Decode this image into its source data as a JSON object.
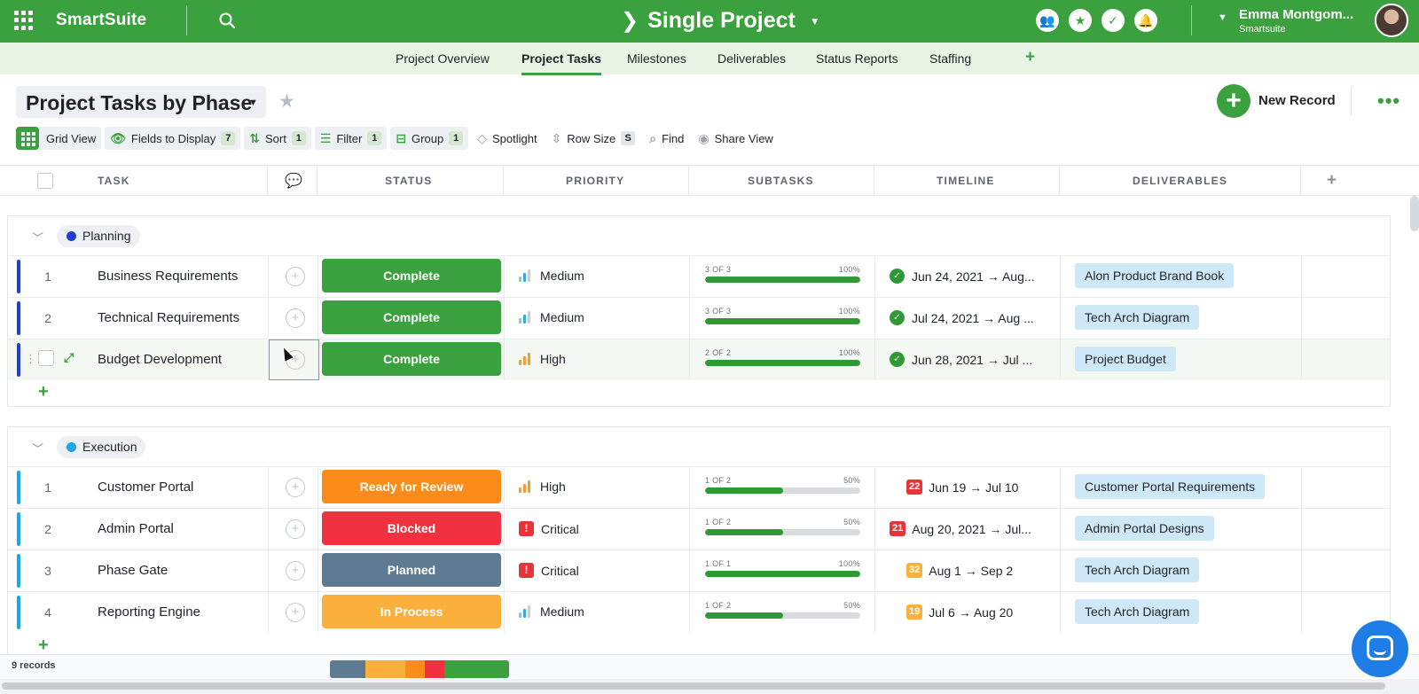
{
  "app": {
    "brand": "SmartSuite",
    "project_title": "Single Project",
    "user_name": "Emma Montgom...",
    "user_org": "Smartsuite"
  },
  "tabs": [
    {
      "label": "Project Overview"
    },
    {
      "label": "Project Tasks",
      "active": true
    },
    {
      "label": "Milestones"
    },
    {
      "label": "Deliverables"
    },
    {
      "label": "Status Reports"
    },
    {
      "label": "Staffing"
    }
  ],
  "view": {
    "title": "Project Tasks by Phase",
    "new_record_label": "New Record"
  },
  "toolbar": {
    "grid_view": "Grid View",
    "fields": "Fields to Display",
    "fields_count": "7",
    "sort": "Sort",
    "sort_count": "1",
    "filter": "Filter",
    "filter_count": "1",
    "group": "Group",
    "group_count": "1",
    "spotlight": "Spotlight",
    "row_size": "Row Size",
    "row_size_value": "S",
    "find": "Find",
    "share_view": "Share View"
  },
  "columns": {
    "task": "TASK",
    "status": "STATUS",
    "priority": "PRIORITY",
    "subtasks": "SUBTASKS",
    "timeline": "TIMELINE",
    "deliverables": "DELIVERABLES"
  },
  "colors": {
    "brand_green": "#3aa13e",
    "complete": "#3aa13e",
    "ready_for_review": "#fb8c1b",
    "blocked": "#f0313f",
    "planned": "#5f7a93",
    "in_process": "#fbb03b",
    "planning_dot": "#1f3fcf",
    "execution_dot": "#1aa7e8"
  },
  "groups": [
    {
      "name": "Planning",
      "rows": [
        {
          "num": "1",
          "task": "Business Requirements",
          "status": "Complete",
          "priority": "Medium",
          "sub_count": "3 OF 3",
          "sub_pct": "100%",
          "sub_fill": 1.0,
          "tl_badge": "",
          "timeline": "Jun 24, 2021 → Aug...",
          "deliverable": "Alon Product Brand Book"
        },
        {
          "num": "2",
          "task": "Technical Requirements",
          "status": "Complete",
          "priority": "Medium",
          "sub_count": "3 OF 3",
          "sub_pct": "100%",
          "sub_fill": 1.0,
          "tl_badge": "",
          "timeline": "Jul 24, 2021 → Aug ...",
          "deliverable": "Tech Arch Diagram"
        },
        {
          "num": "3",
          "task": "Budget Development",
          "status": "Complete",
          "priority": "High",
          "sub_count": "2 OF 2",
          "sub_pct": "100%",
          "sub_fill": 1.0,
          "tl_badge": "",
          "timeline": "Jun 28, 2021 → Jul ...",
          "deliverable": "Project Budget"
        }
      ]
    },
    {
      "name": "Execution",
      "rows": [
        {
          "num": "1",
          "task": "Customer Portal",
          "status": "Ready for Review",
          "priority": "High",
          "sub_count": "1 OF 2",
          "sub_pct": "50%",
          "sub_fill": 0.5,
          "tl_badge": "22",
          "timeline": "Jun 19 → Jul 10",
          "deliverable": "Customer Portal Requirements"
        },
        {
          "num": "2",
          "task": "Admin Portal",
          "status": "Blocked",
          "priority": "Critical",
          "sub_count": "1 OF 2",
          "sub_pct": "50%",
          "sub_fill": 0.5,
          "tl_badge": "21",
          "timeline": "Aug 20, 2021 → Jul...",
          "deliverable": "Admin Portal Designs"
        },
        {
          "num": "3",
          "task": "Phase Gate",
          "status": "Planned",
          "priority": "Critical",
          "sub_count": "1 OF 1",
          "sub_pct": "100%",
          "sub_fill": 1.0,
          "tl_badge": "32",
          "timeline": "Aug 1 → Sep 2",
          "deliverable": "Tech Arch Diagram"
        },
        {
          "num": "4",
          "task": "Reporting Engine",
          "status": "In Process",
          "priority": "Medium",
          "sub_count": "1 OF 2",
          "sub_pct": "50%",
          "sub_fill": 0.5,
          "tl_badge": "19",
          "timeline": "Jul 6 → Aug 20",
          "deliverable": "Tech Arch Diagram"
        }
      ]
    }
  ],
  "footer": {
    "records": "9 records",
    "status_summary": [
      {
        "status": "Planned",
        "fraction": 0.2
      },
      {
        "status": "In Process",
        "fraction": 0.22
      },
      {
        "status": "Ready for Review",
        "fraction": 0.11
      },
      {
        "status": "Blocked",
        "fraction": 0.11
      },
      {
        "status": "Complete",
        "fraction": 0.36
      }
    ]
  },
  "icons": {
    "apps": "apps-grid-icon",
    "search": "search-icon",
    "team": "team-icon",
    "favorite": "star-icon",
    "tasks": "check-icon",
    "notifications": "bell-icon",
    "comment": "comment-add-icon",
    "chat": "chat-icon"
  }
}
